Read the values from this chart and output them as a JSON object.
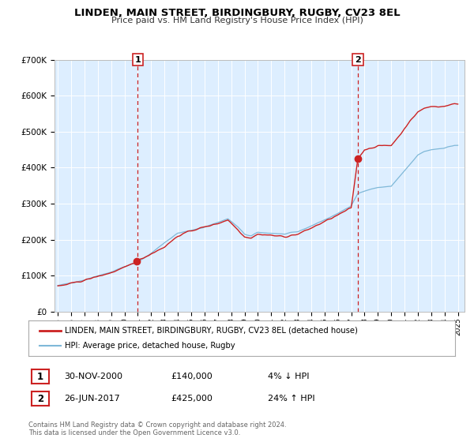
{
  "title": "LINDEN, MAIN STREET, BIRDINGBURY, RUGBY, CV23 8EL",
  "subtitle": "Price paid vs. HM Land Registry's House Price Index (HPI)",
  "legend_label1": "LINDEN, MAIN STREET, BIRDINGBURY, RUGBY, CV23 8EL (detached house)",
  "legend_label2": "HPI: Average price, detached house, Rugby",
  "annotation1_date": "30-NOV-2000",
  "annotation1_price": "£140,000",
  "annotation1_hpi": "4% ↓ HPI",
  "annotation2_date": "26-JUN-2017",
  "annotation2_price": "£425,000",
  "annotation2_hpi": "24% ↑ HPI",
  "footer1": "Contains HM Land Registry data © Crown copyright and database right 2024.",
  "footer2": "This data is licensed under the Open Government Licence v3.0.",
  "hpi_color": "#7fb8d8",
  "price_color": "#cc2222",
  "marker_color": "#cc2222",
  "vline_color": "#cc2222",
  "bg_color": "#ddeeff",
  "ylim": [
    0,
    700000
  ],
  "yticks": [
    0,
    100000,
    200000,
    300000,
    400000,
    500000,
    600000,
    700000
  ],
  "ytick_labels": [
    "£0",
    "£100K",
    "£200K",
    "£300K",
    "£400K",
    "£500K",
    "£600K",
    "£700K"
  ],
  "xmin": 1994.75,
  "xmax": 2025.5,
  "marker1_x": 2000.917,
  "marker1_y": 140000,
  "marker2_x": 2017.5,
  "marker2_y": 425000,
  "vline1_x": 2001.0,
  "vline2_x": 2017.5
}
